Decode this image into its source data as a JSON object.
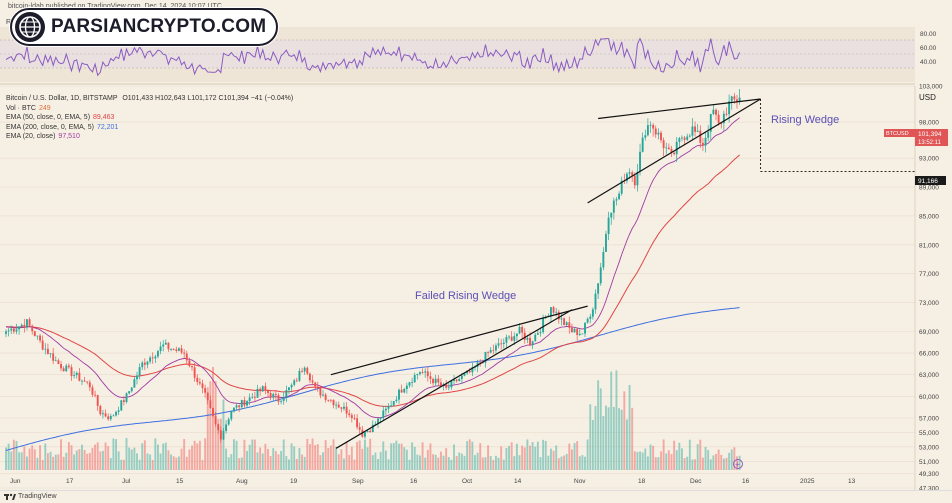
{
  "header": {
    "published": "bitcoin-ldah published on TradingView.com, Dec 14, 2024 10:07 UTC"
  },
  "logo": {
    "text": "PARSIANCRYPTO.COM"
  },
  "rsi": {
    "label": "RSI",
    "ticks": [
      "80.00",
      "60.00",
      "40.00"
    ]
  },
  "legend": {
    "title": "Bitcoin / U.S. Dollar, 1D, BITSTAMP",
    "ohlc": "O101,433 H102,643 L101,172 C101,394 −41 (−0.04%)",
    "vol_label": "Vol · BTC",
    "vol_value": "249",
    "ema50_label": "EMA (50, close, 0, EMA, 5)",
    "ema50_value": "89,463",
    "ema200_label": "EMA (200, close, 0, EMA, 5)",
    "ema200_value": "72,201",
    "ema20_label": "EMA (20, close)",
    "ema20_value": "97,510"
  },
  "axis": {
    "currency": "USD"
  },
  "price_tag": {
    "symbol": "BTCUSD",
    "price": "101,394",
    "countdown": "13:52:11"
  },
  "target_tag": {
    "price": "91,166"
  },
  "footer": {
    "brand": "TradingView"
  },
  "chart_data": {
    "type": "candlestick",
    "title": "Bitcoin / U.S. Dollar, 1D, BITSTAMP",
    "ylim": [
      47300,
      103000
    ],
    "y_ticks": [
      103000,
      98000,
      93000,
      89000,
      85000,
      81000,
      77000,
      73000,
      69000,
      66000,
      63000,
      60000,
      57000,
      55000,
      53000,
      51000,
      49300,
      47300
    ],
    "x_ticks": [
      "Jun",
      "17",
      "Jul",
      "15",
      "Aug",
      "19",
      "Sep",
      "16",
      "Oct",
      "14",
      "Nov",
      "18",
      "Dec",
      "16",
      "2025",
      "13"
    ],
    "close_anchors": [
      [
        0,
        69000
      ],
      [
        8,
        70200
      ],
      [
        14,
        67000
      ],
      [
        20,
        64500
      ],
      [
        26,
        63000
      ],
      [
        32,
        61500
      ],
      [
        36,
        57800
      ],
      [
        40,
        57000
      ],
      [
        46,
        60000
      ],
      [
        52,
        64500
      ],
      [
        60,
        67000
      ],
      [
        68,
        66000
      ],
      [
        76,
        60000
      ],
      [
        80,
        56000
      ],
      [
        82,
        54500
      ],
      [
        86,
        58000
      ],
      [
        92,
        59500
      ],
      [
        98,
        61000
      ],
      [
        104,
        59500
      ],
      [
        110,
        61800
      ],
      [
        114,
        64500
      ],
      [
        118,
        61000
      ],
      [
        126,
        59000
      ],
      [
        132,
        57500
      ],
      [
        136,
        54800
      ],
      [
        140,
        55800
      ],
      [
        146,
        58500
      ],
      [
        152,
        61500
      ],
      [
        158,
        63500
      ],
      [
        162,
        62500
      ],
      [
        168,
        61000
      ],
      [
        172,
        62200
      ],
      [
        178,
        63500
      ],
      [
        184,
        66000
      ],
      [
        190,
        67500
      ],
      [
        196,
        69000
      ],
      [
        200,
        67500
      ],
      [
        204,
        69500
      ],
      [
        208,
        72500
      ],
      [
        212,
        70500
      ],
      [
        216,
        69000
      ],
      [
        220,
        68800
      ],
      [
        224,
        72500
      ],
      [
        226,
        76000
      ],
      [
        228,
        80000
      ],
      [
        230,
        85500
      ],
      [
        234,
        88000
      ],
      [
        236,
        90500
      ],
      [
        238,
        91500
      ],
      [
        240,
        90000
      ],
      [
        244,
        97000
      ],
      [
        246,
        98000
      ],
      [
        250,
        95500
      ],
      [
        254,
        93000
      ],
      [
        258,
        96000
      ],
      [
        262,
        97000
      ],
      [
        266,
        95000
      ],
      [
        270,
        99500
      ],
      [
        272,
        97500
      ],
      [
        276,
        100500
      ],
      [
        280,
        101400
      ]
    ],
    "series": [
      {
        "name": "EMA (50, close, 0, EMA, 5)",
        "color": "#e04545",
        "value": 89463
      },
      {
        "name": "EMA (200, close, 0, EMA, 5)",
        "color": "#3d6fe0",
        "value": 72201
      },
      {
        "name": "EMA (20, close)",
        "color": "#a03aa0",
        "value": 97510
      }
    ],
    "annotations": [
      {
        "text": "Failed Rising Wedge",
        "color": "#5b4fb5"
      },
      {
        "text": "Rising Wedge",
        "color": "#5b4fb5"
      }
    ],
    "wedge_failed": {
      "upper": [
        [
          124,
          63000
        ],
        [
          222,
          72500
        ]
      ],
      "lower": [
        [
          126,
          52800
        ],
        [
          216,
          72000
        ]
      ]
    },
    "wedge_rising": {
      "upper": [
        [
          226,
          98500
        ],
        [
          288,
          101200
        ]
      ],
      "lower": [
        [
          222,
          86800
        ],
        [
          288,
          101200
        ]
      ]
    },
    "projection": {
      "from": [
        288,
        101200
      ],
      "to": [
        312,
        91166
      ]
    }
  }
}
